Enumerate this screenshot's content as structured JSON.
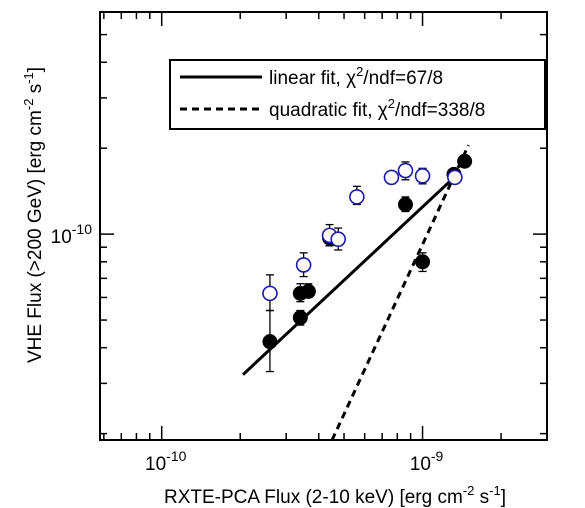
{
  "chart_data": {
    "type": "scatter",
    "xlabel": "RXTE-PCA Flux (2-10 keV) [erg cm^-2 s^-1]",
    "ylabel": "VHE Flux (>200 GeV) [erg cm^-2 s^-1]",
    "xscale": "log",
    "yscale": "log",
    "xlim": [
      5.8e-11,
      3e-09
    ],
    "ylim": [
      1.9e-11,
      6e-10
    ],
    "x_tick_labels": [
      {
        "value": 1e-10,
        "label": "10^-10"
      },
      {
        "value": 1e-09,
        "label": "10^-9"
      }
    ],
    "y_tick_labels": [
      {
        "value": 1e-10,
        "label": "10^-10"
      }
    ],
    "legend_position": "top-right",
    "series": [
      {
        "name": "",
        "marker": "filled-circle",
        "color": "#000000",
        "points": [
          {
            "x": 2.6e-10,
            "y": 4.2e-11,
            "err_lo": 9e-12,
            "err_hi": 1.2e-11
          },
          {
            "x": 3.4e-10,
            "y": 5.1e-11,
            "err_lo": 3e-12,
            "err_hi": 3e-12
          },
          {
            "x": 3.4e-10,
            "y": 6.2e-11,
            "err_lo": 4e-12,
            "err_hi": 5e-12
          },
          {
            "x": 3.65e-10,
            "y": 6.3e-11,
            "err_lo": 3e-12,
            "err_hi": 4e-12
          },
          {
            "x": 4.4e-10,
            "y": 9.7e-11,
            "err_lo": 6e-12,
            "err_hi": 7e-12
          },
          {
            "x": 8.6e-10,
            "y": 1.27e-10,
            "err_lo": 7e-12,
            "err_hi": 8e-12
          },
          {
            "x": 1e-09,
            "y": 8e-11,
            "err_lo": 6e-12,
            "err_hi": 6e-12
          },
          {
            "x": 1.32e-09,
            "y": 1.62e-10,
            "err_lo": 5e-12,
            "err_hi": 5e-12
          },
          {
            "x": 1.45e-09,
            "y": 1.8e-10,
            "err_lo": 5e-12,
            "err_hi": 5e-12
          }
        ]
      },
      {
        "name": "",
        "marker": "open-circle",
        "color": "#1a1aa6",
        "points": [
          {
            "x": 2.6e-10,
            "y": 6.2e-11,
            "err_lo": 8e-12,
            "err_hi": 1e-11
          },
          {
            "x": 3.5e-10,
            "y": 7.8e-11,
            "err_lo": 7e-12,
            "err_hi": 8e-12
          },
          {
            "x": 4.4e-10,
            "y": 9.9e-11,
            "err_lo": 8e-12,
            "err_hi": 9e-12
          },
          {
            "x": 4.75e-10,
            "y": 9.6e-11,
            "err_lo": 8e-12,
            "err_hi": 9e-12
          },
          {
            "x": 5.6e-10,
            "y": 1.35e-10,
            "err_lo": 8e-12,
            "err_hi": 1.2e-11
          },
          {
            "x": 7.6e-10,
            "y": 1.58e-10,
            "err_lo": 8e-12,
            "err_hi": 8e-12
          },
          {
            "x": 8.6e-10,
            "y": 1.67e-10,
            "err_lo": 1.2e-11,
            "err_hi": 1.2e-11
          },
          {
            "x": 1e-09,
            "y": 1.6e-10,
            "err_lo": 1e-11,
            "err_hi": 1e-11
          },
          {
            "x": 1.33e-09,
            "y": 1.58e-10,
            "err_lo": 7e-12,
            "err_hi": 7e-12
          }
        ]
      }
    ],
    "fits": [
      {
        "name": "linear fit, χ²/ndf=67/8",
        "label_main": "linear fit, χ",
        "label_sup": "2",
        "label_rest": "/ndf=67/8",
        "style": "solid",
        "x": [
          2.05e-10,
          1.38e-09
        ],
        "y": [
          3.22e-11,
          1.64e-10
        ]
      },
      {
        "name": "quadratic fit, χ²/ndf=338/8",
        "label_main": "quadratic fit, χ",
        "label_sup": "2",
        "label_rest": "/ndf=338/8",
        "style": "dashed",
        "x": [
          4.5e-10,
          1.5e-09
        ],
        "y": [
          1.9e-11,
          2.05e-10
        ]
      }
    ]
  }
}
